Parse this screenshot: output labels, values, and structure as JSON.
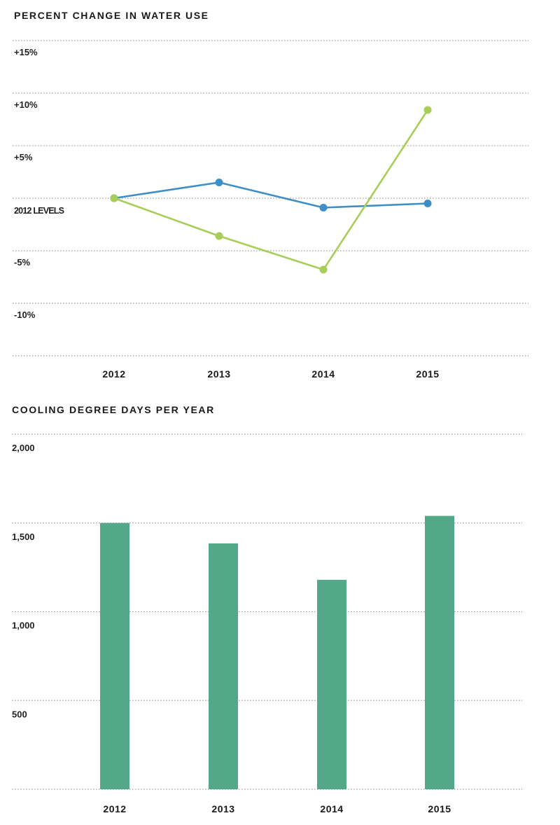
{
  "chart_data": [
    {
      "type": "line",
      "title": "PERCENT CHANGE IN WATER USE",
      "x": [
        "2012",
        "2013",
        "2014",
        "2015"
      ],
      "yticks": [
        {
          "value": 15,
          "label": "+15%"
        },
        {
          "value": 10,
          "label": "+10%"
        },
        {
          "value": 5,
          "label": "+5%"
        },
        {
          "value": 0,
          "label": "2012 LEVELS"
        },
        {
          "value": -5,
          "label": "-5%"
        },
        {
          "value": -10,
          "label": "-10%"
        }
      ],
      "gridlines": [
        15,
        10,
        5,
        0,
        -5,
        -10,
        -15
      ],
      "ylim": [
        -15,
        15
      ],
      "grid": true,
      "series": [
        {
          "values": [
            0,
            1.5,
            -0.9,
            -0.5
          ],
          "color": "#3d8fc6"
        },
        {
          "values": [
            0,
            -3.6,
            -6.8,
            8.4
          ],
          "color": "#a8cd58"
        }
      ]
    },
    {
      "type": "bar",
      "title": "COOLING DEGREE DAYS PER YEAR",
      "categories": [
        "2012",
        "2013",
        "2014",
        "2015"
      ],
      "values": [
        1500,
        1385,
        1180,
        1540
      ],
      "yticks": [
        {
          "value": 2000,
          "label": "2,000"
        },
        {
          "value": 1500,
          "label": "1,500"
        },
        {
          "value": 1000,
          "label": "1,000"
        },
        {
          "value": 500,
          "label": "500"
        }
      ],
      "gridlines": [
        2000,
        1500,
        1000,
        500,
        0
      ],
      "ylim": [
        0,
        2000
      ],
      "grid": true,
      "bar_color": "#52a888"
    }
  ]
}
